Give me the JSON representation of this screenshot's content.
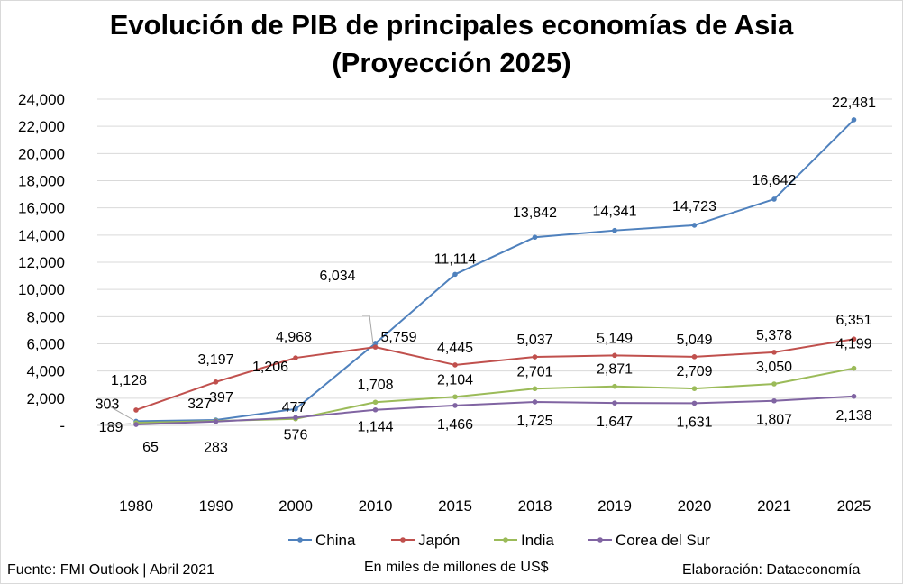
{
  "chart_data": {
    "type": "line",
    "title_line1": "Evolución de PIB de principales economías de Asia",
    "title_line2": "(Proyección 2025)",
    "categories": [
      "1980",
      "1990",
      "2000",
      "2010",
      "2015",
      "2018",
      "2019",
      "2020",
      "2021",
      "2025"
    ],
    "ylim": [
      0,
      24000
    ],
    "yticks": [
      0,
      2000,
      4000,
      6000,
      8000,
      10000,
      12000,
      14000,
      16000,
      18000,
      20000,
      22000,
      24000
    ],
    "ytick_labels": [
      "-",
      "2,000",
      "4,000",
      "6,000",
      "8,000",
      "10,000",
      "12,000",
      "14,000",
      "16,000",
      "18,000",
      "20,000",
      "22,000",
      "24,000"
    ],
    "grid": true,
    "legend_position": "bottom",
    "series": [
      {
        "name": "China",
        "color": "#4F81BD",
        "values": [
          303,
          397,
          1206,
          6034,
          11114,
          13842,
          14341,
          14723,
          16642,
          22481
        ],
        "labels": [
          "303",
          "397",
          "1,206",
          "6,034",
          "11,114",
          "13,842",
          "14,341",
          "14,723",
          "16,642",
          "22,481"
        ]
      },
      {
        "name": "Japón",
        "color": "#C0504D",
        "values": [
          1128,
          3197,
          4968,
          5759,
          4445,
          5037,
          5149,
          5049,
          5378,
          6351
        ],
        "labels": [
          "1,128",
          "3,197",
          "4,968",
          "5,759",
          "4,445",
          "5,037",
          "5,149",
          "5,049",
          "5,378",
          "6,351"
        ]
      },
      {
        "name": "India",
        "color": "#9BBB59",
        "values": [
          189,
          327,
          477,
          1708,
          2104,
          2701,
          2871,
          2709,
          3050,
          4199
        ],
        "labels": [
          "189",
          "327",
          "477",
          "1,708",
          "2,104",
          "2,701",
          "2,871",
          "2,709",
          "3,050",
          "4,199"
        ]
      },
      {
        "name": "Corea del Sur",
        "color": "#8064A2",
        "values": [
          65,
          283,
          576,
          1144,
          1466,
          1725,
          1647,
          1631,
          1807,
          2138
        ],
        "labels": [
          "65",
          "283",
          "576",
          "1,144",
          "1,466",
          "1,725",
          "1,647",
          "1,631",
          "1,807",
          "2,138"
        ]
      }
    ]
  },
  "footer": {
    "source": "Fuente: FMI Outlook | Abril 2021",
    "units": "En miles de millones de US$",
    "credit": "Elaboración: Dataeconomía"
  }
}
